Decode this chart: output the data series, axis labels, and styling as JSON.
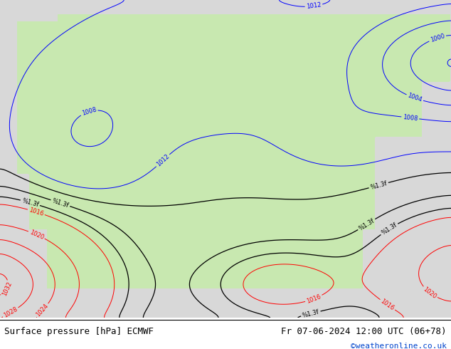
{
  "title_left": "Surface pressure [hPa] ECMWF",
  "title_right": "Fr 07-06-2024 12:00 UTC (06+78)",
  "copyright": "©weatheronline.co.uk",
  "land_color": "#c8e8b0",
  "sea_color": "#d8d8d8",
  "font_size_title": 9,
  "font_size_labels": 6,
  "copyright_color": "#0044cc",
  "contour_interval": 4,
  "pressure_min": 996,
  "pressure_max": 1036
}
